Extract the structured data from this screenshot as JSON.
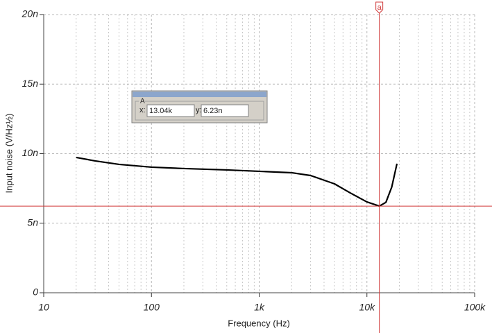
{
  "chart_data": {
    "type": "line",
    "x_label": "Frequency (Hz)",
    "y_label": "Input noise (V/Hz½)",
    "x": [
      20,
      30,
      50,
      100,
      200,
      500,
      1000,
      2000,
      3000,
      5000,
      7000,
      10000,
      13040,
      15000,
      17000,
      19000
    ],
    "values": [
      9.73,
      9.48,
      9.23,
      9.03,
      8.93,
      8.83,
      8.73,
      8.63,
      8.43,
      7.83,
      7.18,
      6.53,
      6.23,
      6.5,
      7.6,
      9.28
    ],
    "color": "#000000",
    "log_x": true,
    "grid": true,
    "xlim": [
      10,
      100000
    ],
    "xticks": [
      10,
      100,
      {
        "value": 1000,
        "label": "1k"
      },
      {
        "value": 10000,
        "label": "10k"
      },
      {
        "value": 100000,
        "label": "100k"
      }
    ],
    "ylim": [
      0,
      20
    ],
    "yticks": [
      {
        "value": 0,
        "label": "0"
      },
      {
        "value": 5,
        "label": "5n"
      },
      {
        "value": 10,
        "label": "10n"
      },
      {
        "value": 15,
        "label": "15n"
      },
      {
        "value": 20,
        "label": "20n"
      }
    ],
    "cursor": {
      "marker": "a",
      "panel_title": "A",
      "x_label": "x:",
      "x": 13040,
      "x_text": "13.04k",
      "y_label": "y:",
      "y": 6.23,
      "y_text": "6.23n",
      "color": "#d03838"
    }
  }
}
